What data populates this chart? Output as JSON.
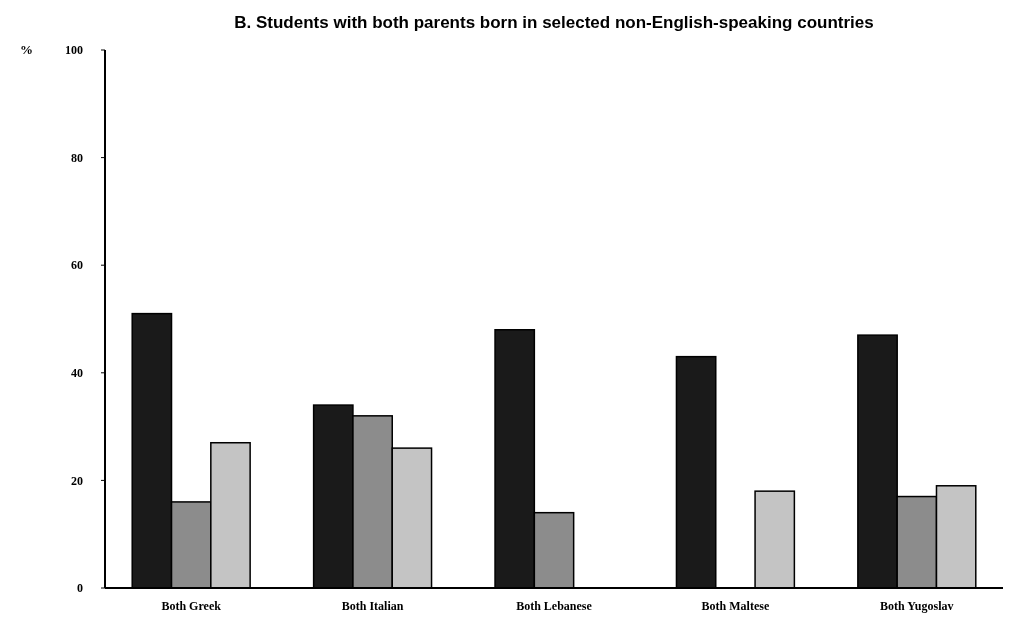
{
  "chart_data": {
    "type": "bar",
    "title": "B. Students with both parents born in selected non-English-speaking countries",
    "ylabel": "%",
    "categories": [
      "Both Greek",
      "Both Italian",
      "Both Lebanese",
      "Both Maltese",
      "Both Yugoslav"
    ],
    "series": [
      {
        "color": "#1a1a1a",
        "values": [
          51,
          34,
          48,
          43,
          47
        ]
      },
      {
        "color": "#8c8c8c",
        "values": [
          16,
          32,
          14,
          null,
          17
        ]
      },
      {
        "color": "#c4c4c4",
        "values": [
          27,
          26,
          null,
          18,
          19
        ]
      }
    ],
    "ylim": [
      0,
      100
    ],
    "yticks": [
      0,
      20,
      40,
      60,
      80,
      100
    ],
    "grid": false
  }
}
